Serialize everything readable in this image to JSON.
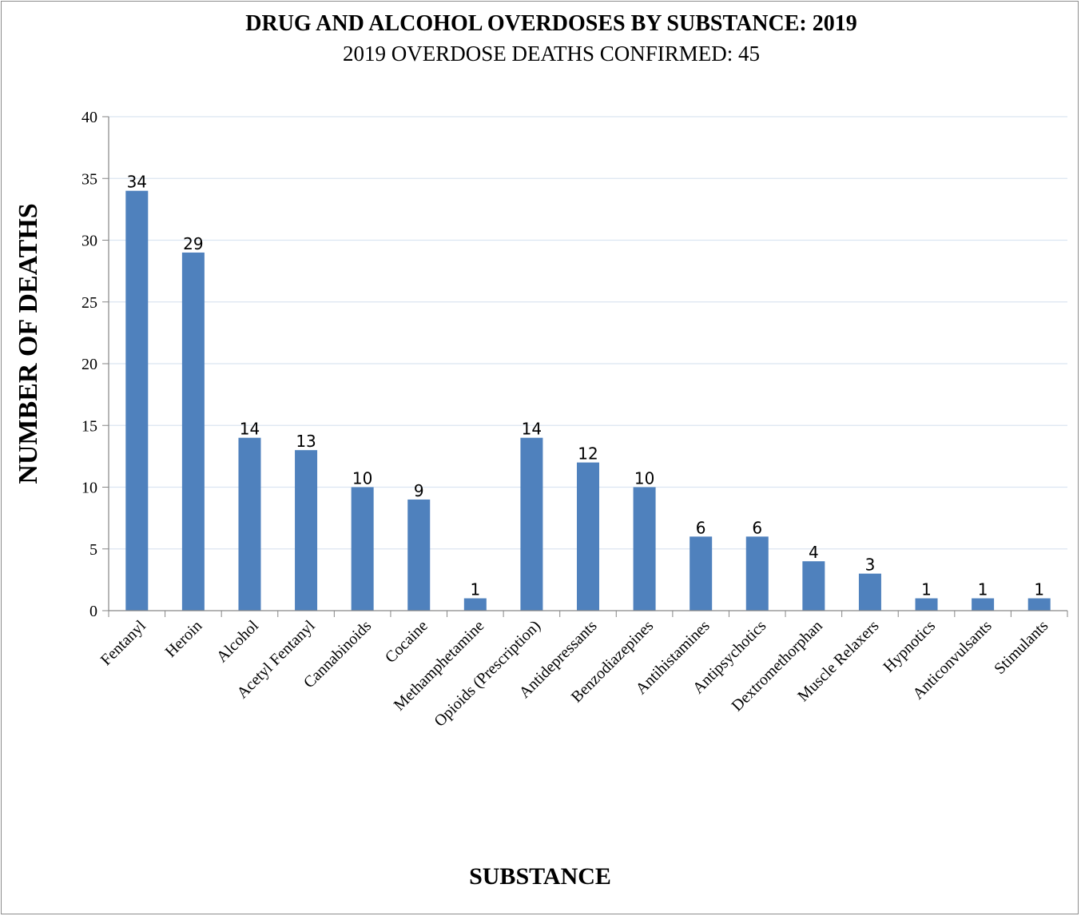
{
  "chart_data": {
    "type": "bar",
    "title": "DRUG AND ALCOHOL OVERDOSES BY SUBSTANCE: 2019",
    "subtitle": "2019 OVERDOSE DEATHS CONFIRMED: 45",
    "xlabel": "SUBSTANCE",
    "ylabel": "NUMBER OF DEATHS",
    "ylim": [
      0,
      40
    ],
    "yticks": [
      0,
      5,
      10,
      15,
      20,
      25,
      30,
      35,
      40
    ],
    "grid": true,
    "bar_color": "#4f81bd",
    "grid_color": "#dbe5f1",
    "categories": [
      "Fentanyl",
      "Heroin",
      "Alcohol",
      "Acetyl Fentanyl",
      "Cannabinoids",
      "Cocaine",
      "Methamphetamine",
      "Opioids (Prescription)",
      "Antidepressants",
      "Benzodiazepines",
      "Antihistamines",
      "Antipsychotics",
      "Dextromethorphan",
      "Muscle Relaxers",
      "Hypnotics",
      "Anticonvulsants",
      "Stimulants"
    ],
    "values": [
      34,
      29,
      14,
      13,
      10,
      9,
      1,
      14,
      12,
      10,
      6,
      6,
      4,
      3,
      1,
      1,
      1
    ]
  }
}
